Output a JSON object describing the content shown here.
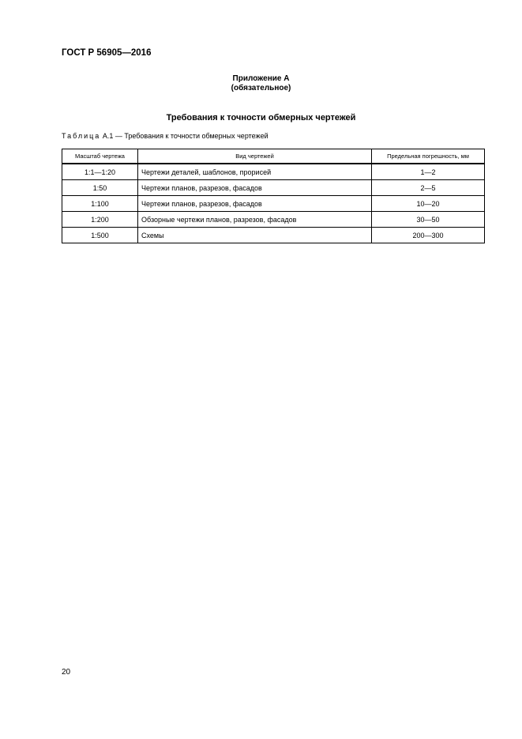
{
  "header": {
    "doc_code": "ГОСТ Р 56905—2016"
  },
  "appendix": {
    "title": "Приложение А",
    "status": "(обязательное)"
  },
  "section_title": "Требования к точности обмерных чертежей",
  "table": {
    "caption_label": "Таблица",
    "caption_text": "А.1 — Требования к точности обмерных чертежей",
    "columns": [
      "Масштаб чертежа",
      "Вид чертежей",
      "Предельная погрешность, мм"
    ],
    "rows": [
      [
        "1:1—1:20",
        "Чертежи деталей, шаблонов, прорисей",
        "1—2"
      ],
      [
        "1:50",
        "Чертежи планов, разрезов, фасадов",
        "2—5"
      ],
      [
        "1:100",
        "Чертежи планов, разрезов, фасадов",
        "10—20"
      ],
      [
        "1:200",
        "Обзорные чертежи планов, разрезов, фасадов",
        "30—50"
      ],
      [
        "1:500",
        "Схемы",
        "200—300"
      ]
    ]
  },
  "footer": {
    "page_number": "20"
  }
}
